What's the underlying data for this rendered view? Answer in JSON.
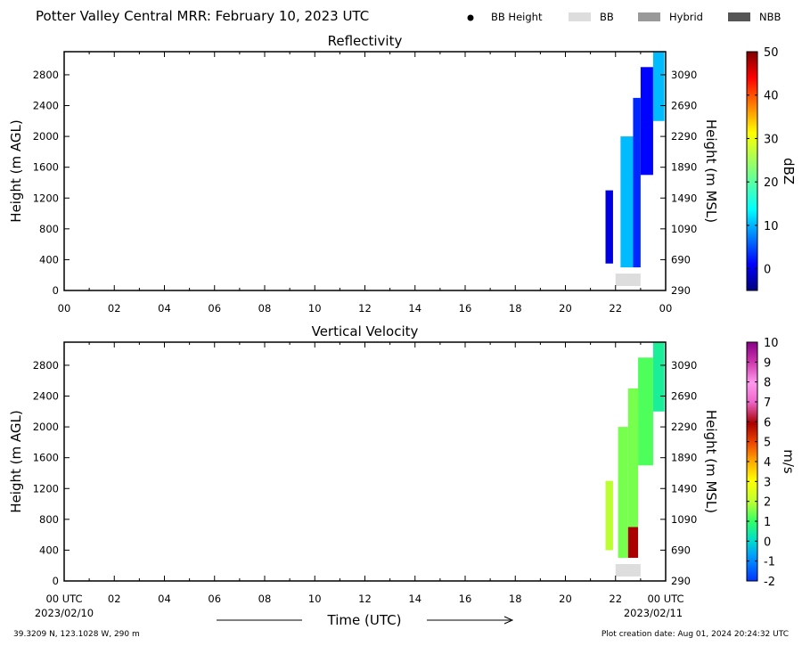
{
  "figure": {
    "title": "Potter Valley Central MRR:  February 10, 2023 UTC",
    "legend": [
      {
        "label": "BB Height",
        "marker": "dot",
        "color": "#000000"
      },
      {
        "label": "BB",
        "marker": "box",
        "color": "#dddddd"
      },
      {
        "label": "Hybrid",
        "marker": "box",
        "color": "#999999"
      },
      {
        "label": "NBB",
        "marker": "box",
        "color": "#555555"
      }
    ],
    "xlabel": "Time (UTC)",
    "start_date": "2023/02/10",
    "end_date": "2023/02/11",
    "location": "39.3209 N, 123.1028 W, 290 m",
    "creation": "Plot creation date: Aug 01, 2024 20:24:32 UTC"
  },
  "chart_data": [
    {
      "type": "heatmap",
      "title": "Reflectivity",
      "ylabel": "Height (m AGL)",
      "y2label": "Height (m MSL)",
      "x_ticks": [
        "00",
        "02",
        "04",
        "06",
        "08",
        "10",
        "12",
        "14",
        "16",
        "18",
        "20",
        "22",
        "00"
      ],
      "y_ticks": [
        0,
        400,
        800,
        1200,
        1600,
        2000,
        2400,
        2800
      ],
      "y2_ticks": [
        290,
        690,
        1090,
        1490,
        1890,
        2290,
        2690,
        3090
      ],
      "xlim_hours": [
        0,
        24
      ],
      "ylim": [
        0,
        3100
      ],
      "colorbar": {
        "label": "dBZ",
        "ticks": [
          0,
          10,
          20,
          30,
          40,
          50
        ],
        "range": [
          -5,
          50
        ]
      },
      "precip_columns": [
        {
          "start_hour": 21.6,
          "end_hour": 21.9,
          "bottom_m": 350,
          "top_m": 1300,
          "value": 0
        },
        {
          "start_hour": 22.2,
          "end_hour": 22.7,
          "bottom_m": 300,
          "top_m": 2000,
          "value": 12
        },
        {
          "start_hour": 22.7,
          "end_hour": 23.0,
          "bottom_m": 300,
          "top_m": 2500,
          "value": 4
        },
        {
          "start_hour": 23.0,
          "end_hour": 23.5,
          "bottom_m": 1500,
          "top_m": 2900,
          "value": 2
        },
        {
          "start_hour": 23.5,
          "end_hour": 23.95,
          "bottom_m": 2200,
          "top_m": 3100,
          "value": 12
        }
      ],
      "bright_band": [
        {
          "start_hour": 22.0,
          "end_hour": 23.0,
          "label": "BB"
        }
      ]
    },
    {
      "type": "heatmap",
      "title": "Vertical Velocity",
      "ylabel": "Height (m AGL)",
      "y2label": "Height (m MSL)",
      "x_ticks": [
        "00 UTC",
        "02",
        "04",
        "06",
        "08",
        "10",
        "12",
        "14",
        "16",
        "18",
        "20",
        "22",
        "00 UTC"
      ],
      "y_ticks": [
        0,
        400,
        800,
        1200,
        1600,
        2000,
        2400,
        2800
      ],
      "y2_ticks": [
        290,
        690,
        1090,
        1490,
        1890,
        2290,
        2690,
        3090
      ],
      "xlim_hours": [
        0,
        24
      ],
      "ylim": [
        0,
        3100
      ],
      "colorbar": {
        "label": "m/s",
        "ticks": [
          -2,
          -1,
          0,
          1,
          2,
          3,
          4,
          5,
          6,
          7,
          8,
          9,
          10
        ],
        "range": [
          -2,
          10
        ]
      },
      "precip_columns": [
        {
          "start_hour": 21.6,
          "end_hour": 21.9,
          "bottom_m": 400,
          "top_m": 1300,
          "value": 2
        },
        {
          "start_hour": 22.1,
          "end_hour": 22.5,
          "bottom_m": 300,
          "top_m": 2000,
          "value": 1.5
        },
        {
          "start_hour": 22.5,
          "end_hour": 22.9,
          "bottom_m": 300,
          "top_m": 700,
          "value": 6
        },
        {
          "start_hour": 22.5,
          "end_hour": 22.9,
          "bottom_m": 700,
          "top_m": 2500,
          "value": 1.5
        },
        {
          "start_hour": 22.9,
          "end_hour": 23.5,
          "bottom_m": 1500,
          "top_m": 2900,
          "value": 1.2
        },
        {
          "start_hour": 23.5,
          "end_hour": 23.95,
          "bottom_m": 2200,
          "top_m": 3100,
          "value": 0.5
        }
      ],
      "bright_band": [
        {
          "start_hour": 22.0,
          "end_hour": 23.0,
          "label": "BB"
        }
      ]
    }
  ]
}
